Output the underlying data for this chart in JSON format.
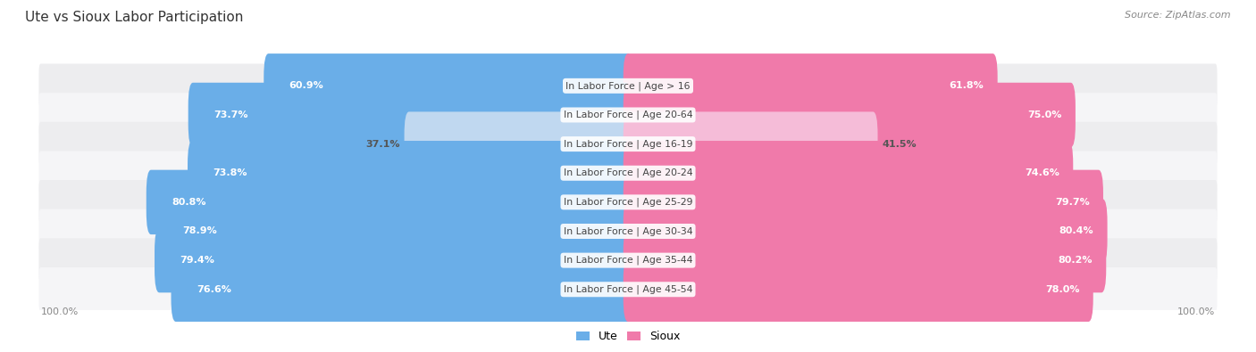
{
  "title": "Ute vs Sioux Labor Participation",
  "source": "Source: ZipAtlas.com",
  "categories": [
    "In Labor Force | Age > 16",
    "In Labor Force | Age 20-64",
    "In Labor Force | Age 16-19",
    "In Labor Force | Age 20-24",
    "In Labor Force | Age 25-29",
    "In Labor Force | Age 30-34",
    "In Labor Force | Age 35-44",
    "In Labor Force | Age 45-54"
  ],
  "ute_values": [
    60.9,
    73.7,
    37.1,
    73.8,
    80.8,
    78.9,
    79.4,
    76.6
  ],
  "sioux_values": [
    61.8,
    75.0,
    41.5,
    74.6,
    79.7,
    80.4,
    80.2,
    78.0
  ],
  "ute_color_strong": "#6aaee8",
  "ute_color_light": "#c0d8f0",
  "sioux_color_strong": "#f07aaa",
  "sioux_color_light": "#f5bcd8",
  "bg_color": "#ffffff",
  "row_bg_even": "#ededef",
  "row_bg_odd": "#f5f5f7",
  "bar_height": 0.62,
  "max_value": 100.0,
  "legend_ute": "Ute",
  "legend_sioux": "Sioux",
  "light_rows": [
    2
  ]
}
